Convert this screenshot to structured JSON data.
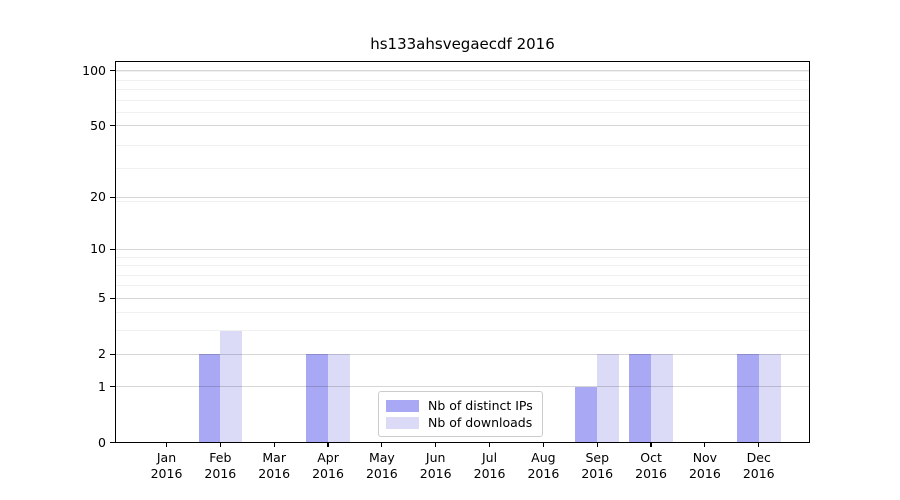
{
  "chart_data": {
    "type": "bar",
    "title": "hs133ahsvegaecdf 2016",
    "categories": [
      "Jan",
      "Feb",
      "Mar",
      "Apr",
      "May",
      "Jun",
      "Jul",
      "Aug",
      "Sep",
      "Oct",
      "Nov",
      "Dec"
    ],
    "category_year": "2016",
    "series": [
      {
        "name": "Nb of distinct IPs",
        "color": "#a8a8f4",
        "values": [
          0,
          2,
          0,
          2,
          0,
          0,
          0,
          0,
          1,
          2,
          0,
          2
        ]
      },
      {
        "name": "Nb of downloads",
        "color": "#dbdbf8",
        "values": [
          0,
          3,
          0,
          2,
          0,
          0,
          0,
          0,
          2,
          2,
          0,
          2
        ]
      }
    ],
    "y_axis": {
      "scale": "log10(value+1)",
      "tick_values": [
        0,
        1,
        2,
        5,
        10,
        20,
        50,
        100
      ],
      "minor_gridline_values": [
        3,
        4,
        6,
        7,
        8,
        9,
        19,
        29,
        39,
        59,
        69,
        79,
        89,
        99
      ],
      "ylim": [
        0,
        111
      ]
    },
    "legend": {
      "position": "lower center"
    },
    "grid": true,
    "xlabel": "",
    "ylabel": ""
  }
}
